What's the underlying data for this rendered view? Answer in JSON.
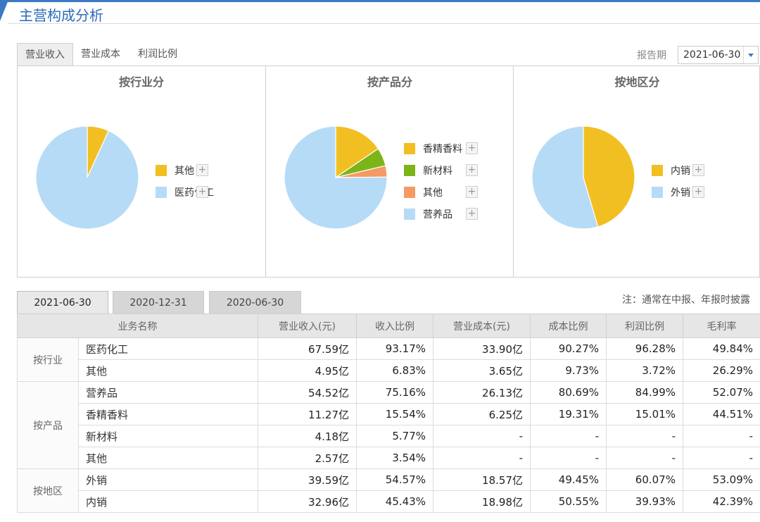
{
  "header": {
    "title": "主营构成分析"
  },
  "tabs": [
    {
      "label": "营业收入",
      "active": true
    },
    {
      "label": "营业成本",
      "active": false
    },
    {
      "label": "利润比例",
      "active": false
    }
  ],
  "report_period": {
    "label": "报告期",
    "value": "2021-06-30"
  },
  "colors": {
    "accent": "#3a78c3",
    "yellow": "#f2bf22",
    "green": "#7cb518",
    "orange": "#f59a62",
    "lightblue": "#b6dbf7"
  },
  "chart_data": [
    {
      "type": "pie",
      "title": "按行业分",
      "categories": [
        "其他",
        "医药化工"
      ],
      "values": [
        6.83,
        93.17
      ],
      "colors": [
        "#f2bf22",
        "#b6dbf7"
      ],
      "legend_position": "right"
    },
    {
      "type": "pie",
      "title": "按产品分",
      "categories": [
        "香精香料",
        "新材料",
        "其他",
        "营养品"
      ],
      "values": [
        15.54,
        5.77,
        3.54,
        75.16
      ],
      "colors": [
        "#f2bf22",
        "#7cb518",
        "#f59a62",
        "#b6dbf7"
      ],
      "legend_position": "right"
    },
    {
      "type": "pie",
      "title": "按地区分",
      "categories": [
        "内销",
        "外销"
      ],
      "values": [
        45.43,
        54.57
      ],
      "colors": [
        "#f2bf22",
        "#b6dbf7"
      ],
      "legend_position": "right"
    }
  ],
  "period_tabs": [
    {
      "label": "2021-06-30",
      "active": true
    },
    {
      "label": "2020-12-31",
      "active": false
    },
    {
      "label": "2020-06-30",
      "active": false
    }
  ],
  "note": "注：通常在中报、年报时披露",
  "table": {
    "headers": [
      "业务名称",
      "营业收入(元)",
      "收入比例",
      "营业成本(元)",
      "成本比例",
      "利润比例",
      "毛利率"
    ],
    "groups": [
      {
        "name": "按行业",
        "rows": [
          [
            "医药化工",
            "67.59亿",
            "93.17%",
            "33.90亿",
            "90.27%",
            "96.28%",
            "49.84%"
          ],
          [
            "其他",
            "4.95亿",
            "6.83%",
            "3.65亿",
            "9.73%",
            "3.72%",
            "26.29%"
          ]
        ]
      },
      {
        "name": "按产品",
        "rows": [
          [
            "营养品",
            "54.52亿",
            "75.16%",
            "26.13亿",
            "80.69%",
            "84.99%",
            "52.07%"
          ],
          [
            "香精香料",
            "11.27亿",
            "15.54%",
            "6.25亿",
            "19.31%",
            "15.01%",
            "44.51%"
          ],
          [
            "新材料",
            "4.18亿",
            "5.77%",
            "-",
            "-",
            "-",
            "-"
          ],
          [
            "其他",
            "2.57亿",
            "3.54%",
            "-",
            "-",
            "-",
            "-"
          ]
        ]
      },
      {
        "name": "按地区",
        "rows": [
          [
            "外销",
            "39.59亿",
            "54.57%",
            "18.57亿",
            "49.45%",
            "60.07%",
            "53.09%"
          ],
          [
            "内销",
            "32.96亿",
            "45.43%",
            "18.98亿",
            "50.55%",
            "39.93%",
            "42.39%"
          ]
        ]
      }
    ]
  }
}
